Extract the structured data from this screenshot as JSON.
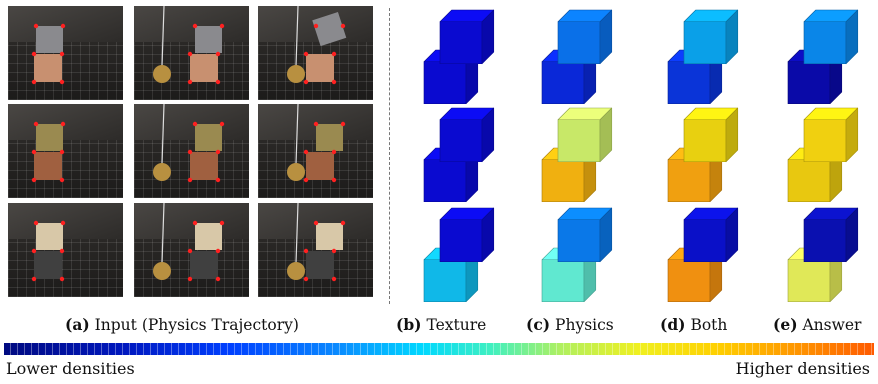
{
  "captions": {
    "a": {
      "label": "(a)",
      "text": "Input (Physics Trajectory)"
    },
    "b": {
      "label": "(b)",
      "text": "Texture"
    },
    "c": {
      "label": "(c)",
      "text": "Physics"
    },
    "d": {
      "label": "(d)",
      "text": "Both"
    },
    "e": {
      "label": "(e)",
      "text": "Answer"
    }
  },
  "colorbar": {
    "low_label": "Lower densities",
    "high_label": "Higher densities"
  },
  "rows": [
    {
      "texture": {
        "top": "#0a0ad0",
        "bottom": "#0a0ad0"
      },
      "physics": {
        "top": "#0a70e8",
        "bottom": "#0a28d8"
      },
      "both": {
        "top": "#0aa0e8",
        "bottom": "#0a34d8"
      },
      "answer": {
        "top": "#0a86e8",
        "bottom": "#0a0aa8"
      }
    },
    {
      "texture": {
        "top": "#0a0ad0",
        "bottom": "#0a0ad0"
      },
      "physics": {
        "top": "#c8e868",
        "bottom": "#f0b010"
      },
      "both": {
        "top": "#e8d010",
        "bottom": "#f0a010"
      },
      "answer": {
        "top": "#f0d010",
        "bottom": "#e8c810"
      }
    },
    {
      "texture": {
        "top": "#0a0ad0",
        "bottom": "#10b8e8"
      },
      "physics": {
        "top": "#0a78e8",
        "bottom": "#60e8d0"
      },
      "both": {
        "top": "#0a10c8",
        "bottom": "#f09010"
      },
      "answer": {
        "top": "#0a10b0",
        "bottom": "#e0e858"
      }
    }
  ]
}
